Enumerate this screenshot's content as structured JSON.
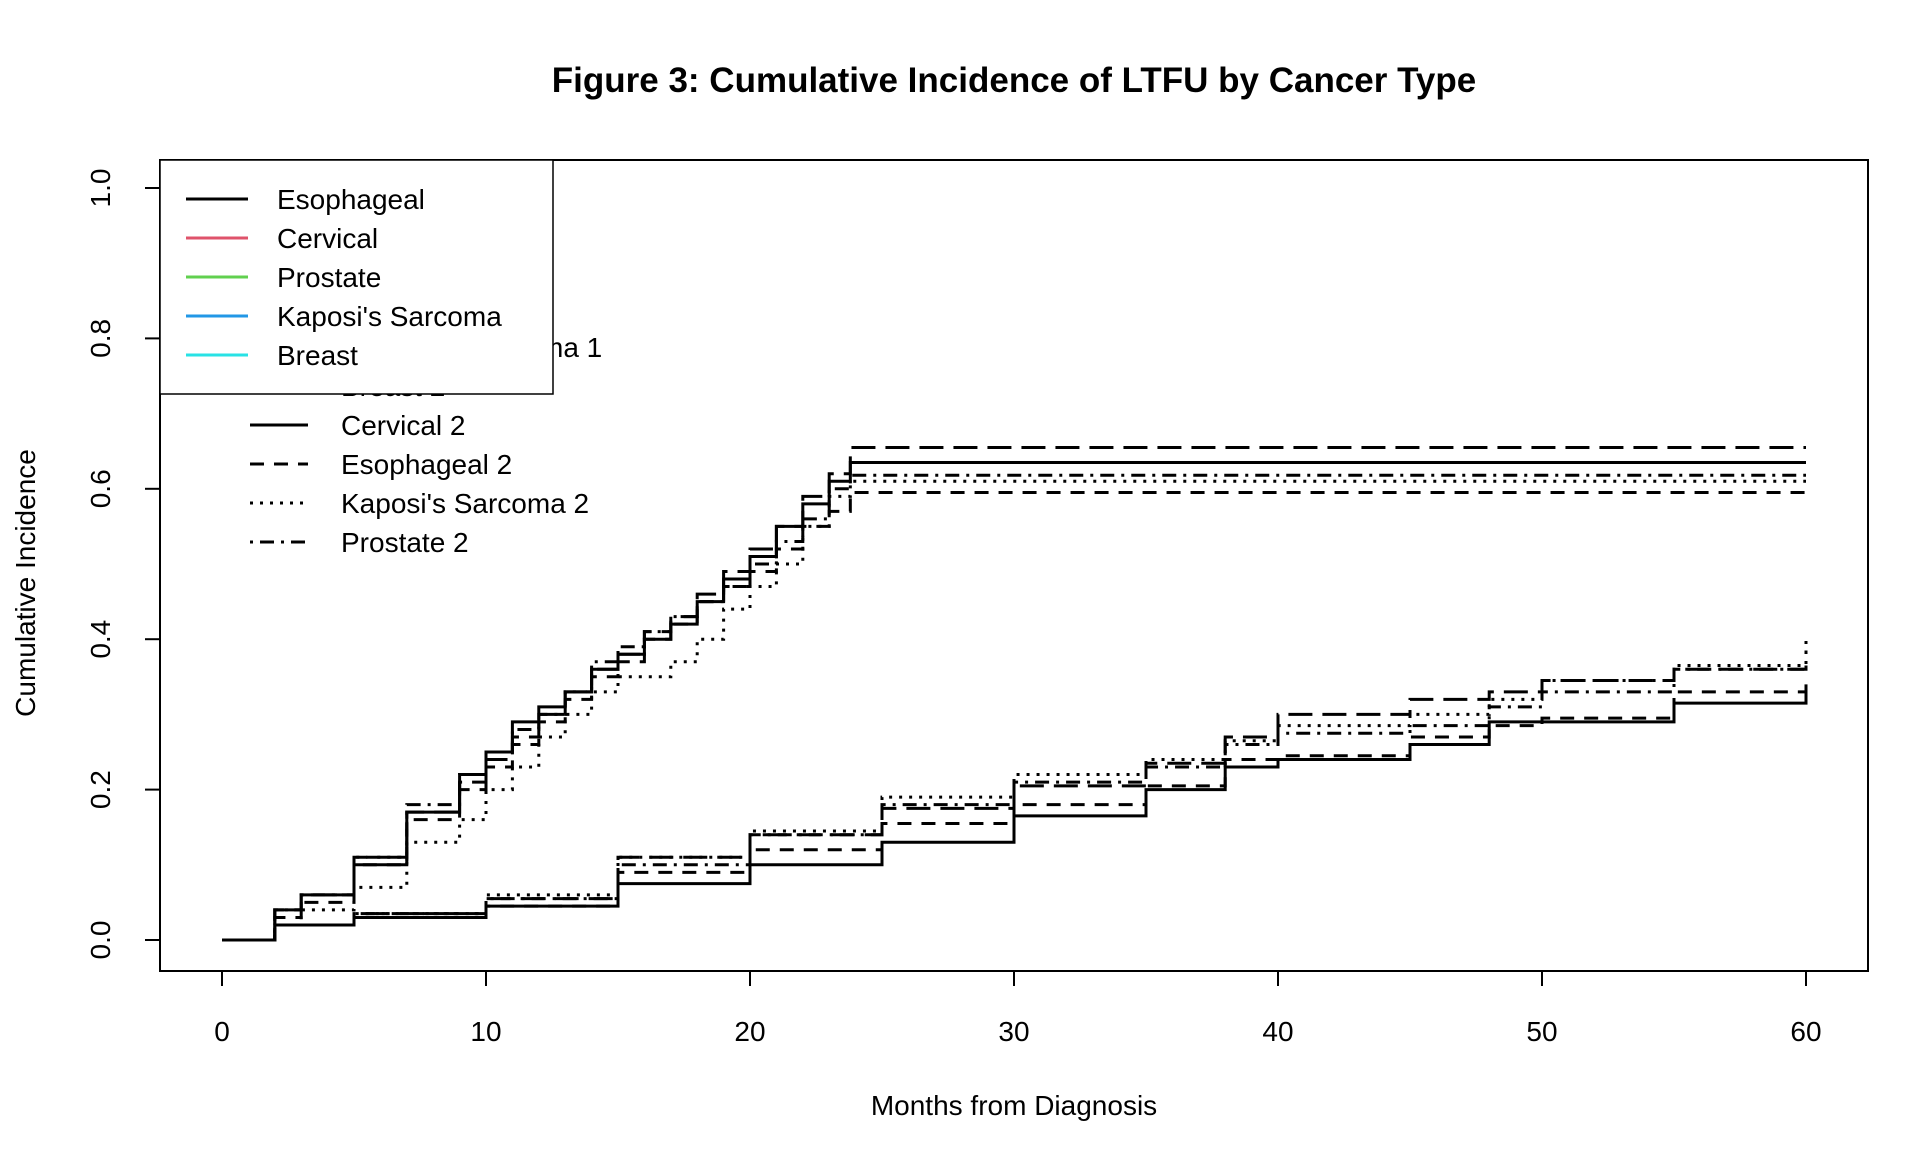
{
  "chart_data": {
    "type": "line",
    "title": "Figure 3: Cumulative Incidence of LTFU by Cancer Type",
    "xlabel": "Months from Diagnosis",
    "ylabel": "Cumulative Incidence",
    "xlim": [
      0,
      60
    ],
    "ylim": [
      0,
      1
    ],
    "x_ticks": [
      "0",
      "10",
      "20",
      "30",
      "40",
      "50",
      "60"
    ],
    "y_ticks": [
      "0.0",
      "0.2",
      "0.4",
      "0.6",
      "0.8",
      "1.0"
    ],
    "grid": false,
    "colors": {
      "Esophageal": "#000000",
      "Cervical": "#DF536B",
      "Prostate": "#61D04F",
      "Kaposi's Sarcoma": "#2297E6",
      "Breast": "#28E2E5"
    },
    "legend_top": [
      "Esophageal",
      "Cervical",
      "Prostate",
      "Kaposi's Sarcoma",
      "Breast"
    ],
    "legend_back": [
      {
        "label": "ma 1",
        "dash": ""
      },
      {
        "label": "Breast 2",
        "dash": "longdash"
      },
      {
        "label": "Cervical 2",
        "dash": "solid"
      },
      {
        "label": "Esophageal 2",
        "dash": "dashed"
      },
      {
        "label": "Kaposi's Sarcoma 2",
        "dash": "dotted"
      },
      {
        "label": "Prostate 2",
        "dash": "dotdash"
      }
    ],
    "series": [
      {
        "event": 1,
        "dash": "solid",
        "x": [
          0,
          1,
          2,
          3,
          5,
          7,
          9,
          10,
          11,
          12,
          13,
          14,
          15,
          16,
          17,
          18,
          19,
          20,
          21,
          22,
          23,
          23.8,
          60
        ],
        "y": [
          0,
          0,
          0.04,
          0.06,
          0.1,
          0.17,
          0.22,
          0.25,
          0.29,
          0.31,
          0.33,
          0.36,
          0.38,
          0.4,
          0.42,
          0.45,
          0.48,
          0.51,
          0.55,
          0.58,
          0.61,
          0.635,
          0.635
        ]
      },
      {
        "event": 1,
        "dash": "dashed",
        "x": [
          0,
          1,
          2,
          3,
          5,
          7,
          9,
          10,
          11,
          12,
          13,
          14,
          15,
          16,
          17,
          18,
          19,
          20,
          21,
          22,
          23,
          23.8,
          60
        ],
        "y": [
          0,
          0,
          0.03,
          0.05,
          0.1,
          0.16,
          0.2,
          0.23,
          0.26,
          0.29,
          0.32,
          0.35,
          0.37,
          0.4,
          0.42,
          0.45,
          0.47,
          0.49,
          0.52,
          0.55,
          0.57,
          0.595,
          0.595
        ]
      },
      {
        "event": 1,
        "dash": "dotted",
        "x": [
          0,
          1,
          2,
          3,
          5,
          7,
          9,
          10,
          11,
          12,
          13,
          14,
          15,
          16,
          17,
          18,
          19,
          20,
          21,
          22,
          23,
          23.8,
          60
        ],
        "y": [
          0,
          0,
          0.02,
          0.04,
          0.07,
          0.13,
          0.16,
          0.2,
          0.23,
          0.27,
          0.3,
          0.33,
          0.35,
          0.35,
          0.37,
          0.4,
          0.44,
          0.47,
          0.5,
          0.55,
          0.59,
          0.61,
          0.61
        ]
      },
      {
        "event": 1,
        "dash": "dotdash",
        "x": [
          0,
          1,
          2,
          3,
          5,
          7,
          9,
          10,
          11,
          12,
          13,
          14,
          15,
          16,
          17,
          18,
          19,
          20,
          21,
          22,
          23,
          23.8,
          60
        ],
        "y": [
          0,
          0,
          0.04,
          0.06,
          0.11,
          0.18,
          0.22,
          0.25,
          0.28,
          0.3,
          0.33,
          0.37,
          0.39,
          0.41,
          0.43,
          0.45,
          0.47,
          0.5,
          0.53,
          0.56,
          0.6,
          0.618,
          0.618
        ]
      },
      {
        "event": 1,
        "dash": "longdash",
        "x": [
          0,
          1,
          2,
          3,
          5,
          7,
          9,
          10,
          11,
          12,
          13,
          14,
          15,
          16,
          17,
          18,
          19,
          20,
          21,
          22,
          23,
          23.8,
          60
        ],
        "y": [
          0,
          0,
          0.04,
          0.06,
          0.11,
          0.17,
          0.21,
          0.24,
          0.27,
          0.3,
          0.33,
          0.36,
          0.38,
          0.41,
          0.43,
          0.46,
          0.49,
          0.52,
          0.55,
          0.59,
          0.62,
          0.655,
          0.655
        ]
      },
      {
        "event": 2,
        "dash": "solid",
        "x": [
          0,
          1,
          2,
          5,
          10,
          15,
          20,
          25,
          30,
          35,
          38,
          40,
          45,
          48,
          50,
          55,
          60
        ],
        "y": [
          0,
          0,
          0.02,
          0.03,
          0.045,
          0.075,
          0.1,
          0.13,
          0.165,
          0.2,
          0.23,
          0.24,
          0.26,
          0.29,
          0.29,
          0.315,
          0.34
        ]
      },
      {
        "event": 2,
        "dash": "dashed",
        "x": [
          0,
          1,
          2,
          5,
          10,
          15,
          20,
          25,
          30,
          35,
          38,
          40,
          45,
          48,
          50,
          55,
          60
        ],
        "y": [
          0,
          0,
          0.02,
          0.03,
          0.045,
          0.09,
          0.12,
          0.155,
          0.18,
          0.205,
          0.24,
          0.245,
          0.27,
          0.285,
          0.295,
          0.33,
          0.35
        ]
      },
      {
        "event": 2,
        "dash": "dotted",
        "x": [
          0,
          1,
          2,
          5,
          10,
          15,
          20,
          25,
          30,
          35,
          38,
          40,
          45,
          48,
          50,
          55,
          60
        ],
        "y": [
          0,
          0,
          0.02,
          0.035,
          0.06,
          0.11,
          0.145,
          0.19,
          0.22,
          0.24,
          0.265,
          0.285,
          0.3,
          0.32,
          0.345,
          0.365,
          0.405
        ]
      },
      {
        "event": 2,
        "dash": "dotdash",
        "x": [
          0,
          1,
          2,
          5,
          10,
          15,
          20,
          25,
          30,
          35,
          38,
          40,
          45,
          48,
          50,
          55,
          60
        ],
        "y": [
          0,
          0,
          0.02,
          0.035,
          0.055,
          0.1,
          0.14,
          0.18,
          0.21,
          0.23,
          0.26,
          0.275,
          0.285,
          0.31,
          0.33,
          0.36,
          0.385
        ]
      },
      {
        "event": 2,
        "dash": "longdash",
        "x": [
          0,
          1,
          2,
          5,
          10,
          15,
          20,
          25,
          30,
          35,
          38,
          40,
          45,
          48,
          50,
          55,
          60
        ],
        "y": [
          0,
          0,
          0.02,
          0.035,
          0.055,
          0.11,
          0.14,
          0.175,
          0.205,
          0.235,
          0.27,
          0.3,
          0.32,
          0.33,
          0.345,
          0.36,
          0.365
        ]
      }
    ]
  }
}
